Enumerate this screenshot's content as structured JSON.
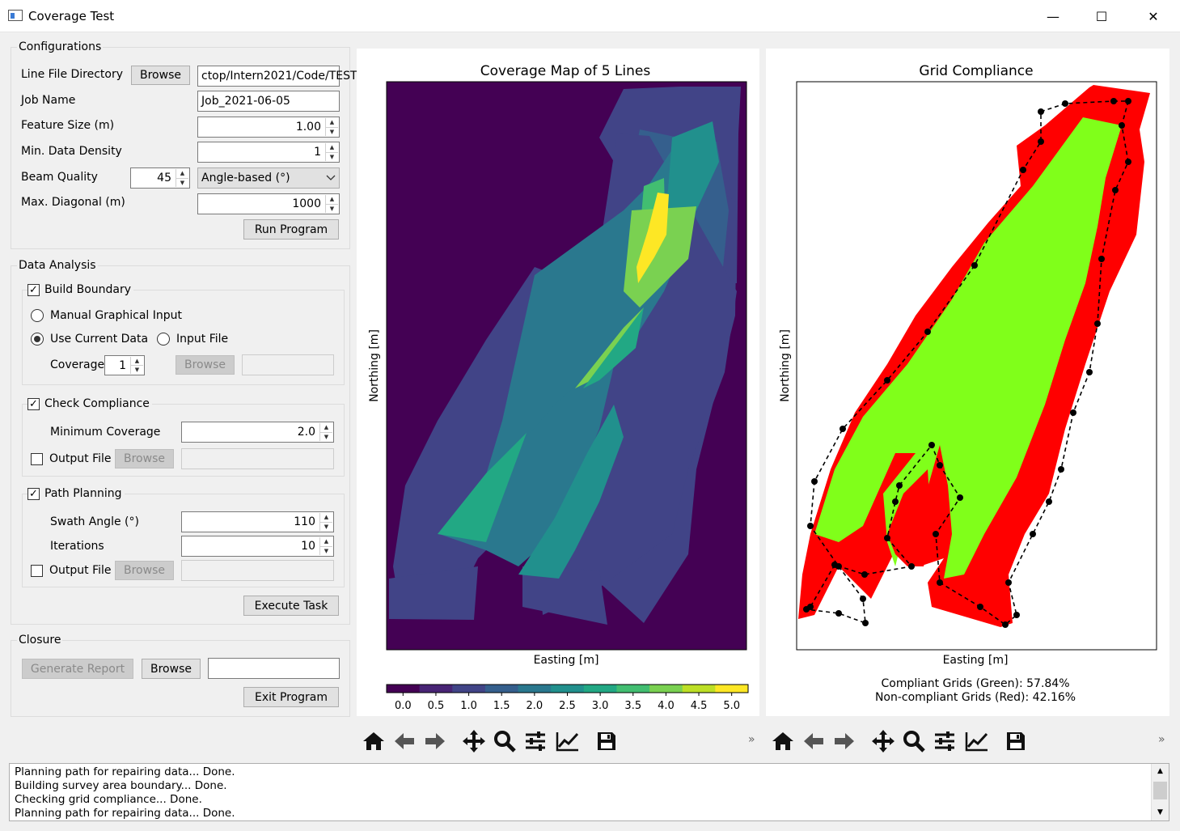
{
  "window": {
    "title": "Coverage Test",
    "minimize": "—",
    "maximize": "☐",
    "close": "✕"
  },
  "configurations": {
    "title": "Configurations",
    "line_file_directory_label": "Line File Directory",
    "browse_label": "Browse",
    "line_file_directory_value": "ctop/Intern2021/Code/TEST",
    "job_name_label": "Job Name",
    "job_name_value": "Job_2021-06-05",
    "feature_size_label": "Feature Size (m)",
    "feature_size_value": "1.00",
    "min_data_density_label": "Min. Data Density",
    "min_data_density_value": "1",
    "beam_quality_label": "Beam Quality",
    "beam_quality_value": "45",
    "beam_quality_mode": "Angle-based (°)",
    "max_diagonal_label": "Max. Diagonal (m)",
    "max_diagonal_value": "1000",
    "run_label": "Run Program"
  },
  "data_analysis": {
    "title": "Data Analysis",
    "build_boundary": {
      "label": "Build Boundary",
      "checked": true,
      "manual_label": "Manual Graphical Input",
      "current_label": "Use Current Data",
      "input_file_label": "Input File",
      "coverage_label": "Coverage",
      "coverage_value": "1",
      "browse_label": "Browse",
      "file_value": ""
    },
    "check_compliance": {
      "label": "Check Compliance",
      "checked": true,
      "min_coverage_label": "Minimum Coverage",
      "min_coverage_value": "2.0",
      "output_label": "Output File",
      "browse_label": "Browse",
      "file_value": ""
    },
    "path_planning": {
      "label": "Path Planning",
      "checked": true,
      "swath_label": "Swath Angle (°)",
      "swath_value": "110",
      "iterations_label": "Iterations",
      "iterations_value": "10",
      "output_label": "Output File",
      "browse_label": "Browse",
      "file_value": ""
    },
    "execute_label": "Execute Task"
  },
  "closure": {
    "title": "Closure",
    "generate_label": "Generate Report",
    "browse_label": "Browse",
    "file_value": "",
    "exit_label": "Exit Program"
  },
  "coverage_plot": {
    "title": "Coverage Map of 5 Lines",
    "xlabel": "Easting [m]",
    "ylabel": "Northing [m]",
    "colorbar_ticks": [
      "0.0",
      "0.5",
      "1.0",
      "1.5",
      "2.0",
      "2.5",
      "3.0",
      "3.5",
      "4.0",
      "4.5",
      "5.0"
    ],
    "colormap": [
      "#440154",
      "#482475",
      "#414487",
      "#355f8d",
      "#2a788e",
      "#21908d",
      "#22a884",
      "#42be71",
      "#7ad151",
      "#bddf26",
      "#fde725"
    ]
  },
  "compliance_plot": {
    "title": "Grid Compliance",
    "xlabel": "Easting [m]",
    "ylabel": "Northing [m]",
    "compliant_text": "Compliant Grids (Green): 57.84%",
    "noncompliant_text": "Non-compliant Grids (Red): 42.16%",
    "compliant_color": "#80ff1a",
    "noncompliant_color": "#ff0000"
  },
  "chart_data": [
    {
      "type": "heatmap",
      "title": "Coverage Map of 5 Lines",
      "xlabel": "Easting [m]",
      "ylabel": "Northing [m]",
      "colorbar_range": [
        0.0,
        5.0
      ]
    },
    {
      "type": "heatmap",
      "title": "Grid Compliance",
      "xlabel": "Easting [m]",
      "ylabel": "Northing [m]",
      "series": [
        {
          "name": "Compliant Grids (Green)",
          "values": [
            57.84
          ]
        },
        {
          "name": "Non-compliant Grids (Red)",
          "values": [
            42.16
          ]
        }
      ]
    }
  ],
  "toolbar": {
    "overflow": "»",
    "icons": [
      "home-icon",
      "back-arrow-icon",
      "forward-arrow-icon",
      "pan-icon",
      "zoom-icon",
      "configure-subplots-icon",
      "edit-axes-icon",
      "save-icon"
    ]
  },
  "log": {
    "lines": [
      "Planning path for repairing data... Done.",
      "Building survey area boundary... Done.",
      "Checking grid compliance... Done.",
      "Planning path for repairing data... Done."
    ]
  }
}
